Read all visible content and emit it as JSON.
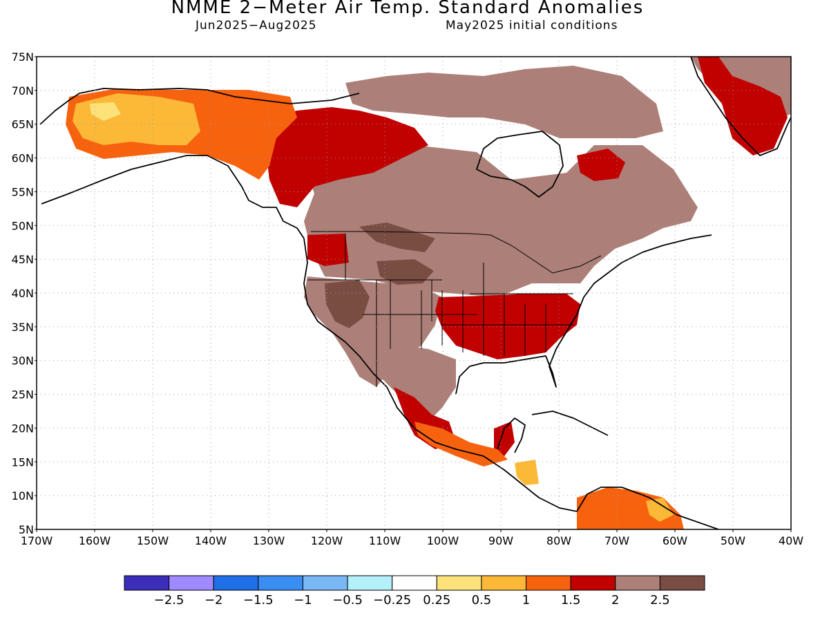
{
  "title": "NMME 2−Meter Air Temp. Standard Anomalies",
  "period": "Jun2025−Aug2025",
  "init": "May2025 initial conditions",
  "lat_labels": [
    "75N",
    "70N",
    "65N",
    "60N",
    "55N",
    "50N",
    "45N",
    "40N",
    "35N",
    "30N",
    "25N",
    "20N",
    "15N",
    "10N",
    "5N"
  ],
  "lon_labels": [
    "170W",
    "160W",
    "150W",
    "140W",
    "130W",
    "120W",
    "110W",
    "100W",
    "90W",
    "80W",
    "70W",
    "60W",
    "50W",
    "40W"
  ],
  "extent": {
    "lon_min": -170,
    "lon_max": -40,
    "lat_min": 5,
    "lat_max": 75
  },
  "colorbar": {
    "colors": [
      "#3b2fb9",
      "#a08aff",
      "#1f6fe8",
      "#3a8ef2",
      "#7ab8f5",
      "#b4f0fa",
      "#ffffff",
      "#fde27a",
      "#fbb937",
      "#f7620f",
      "#c10000",
      "#ac8078",
      "#7a4d43"
    ],
    "labels": [
      "−2.5",
      "−2",
      "−1.5",
      "−1",
      "−0.5",
      "−0.25",
      "0.25",
      "0.5",
      "1",
      "1.5",
      "2",
      "2.5"
    ]
  }
}
